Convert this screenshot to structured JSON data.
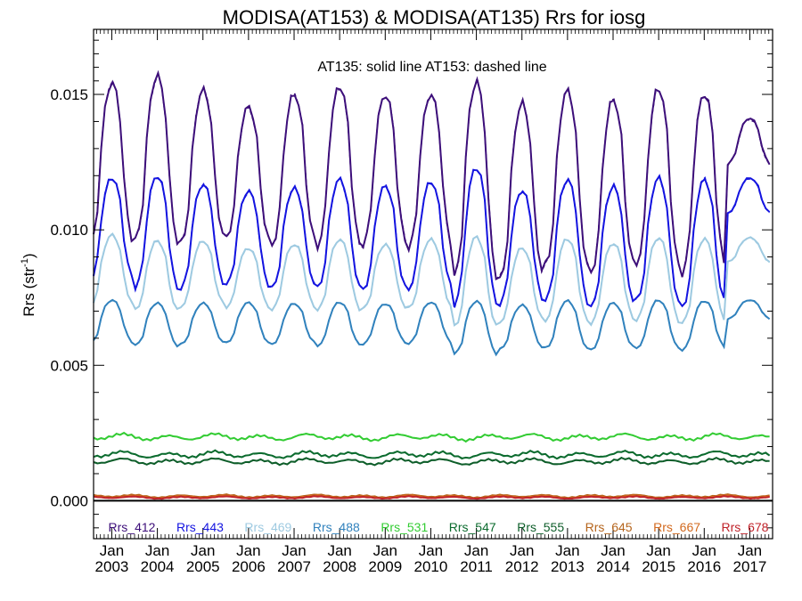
{
  "chart_data": {
    "type": "line",
    "title": "MODISA(AT153) & MODISA(AT135)  Rrs for iosg",
    "ylabel": "Rrs (str",
    "ylabel_sup": "-1",
    "ylabel_close": ")",
    "annotation": "AT135: solid line   AT153: dashed line",
    "xlim": [
      2002.6,
      2017.5
    ],
    "ylim": [
      -0.0014,
      0.0174
    ],
    "y_ticks": [
      0.0,
      0.005,
      0.01,
      0.015
    ],
    "y_tick_labels": [
      "0.000",
      "0.005",
      "0.010",
      "0.015"
    ],
    "x_ticks": [
      {
        "x": 2003,
        "month": "Jan",
        "year": "2003"
      },
      {
        "x": 2004,
        "month": "Jan",
        "year": "2004"
      },
      {
        "x": 2005,
        "month": "Jan",
        "year": "2005"
      },
      {
        "x": 2006,
        "month": "Jan",
        "year": "2006"
      },
      {
        "x": 2007,
        "month": "Jan",
        "year": "2007"
      },
      {
        "x": 2008,
        "month": "Jan",
        "year": "2008"
      },
      {
        "x": 2009,
        "month": "Jan",
        "year": "2009"
      },
      {
        "x": 2010,
        "month": "Jan",
        "year": "2010"
      },
      {
        "x": 2011,
        "month": "Jan",
        "year": "2011"
      },
      {
        "x": 2012,
        "month": "Jan",
        "year": "2012"
      },
      {
        "x": 2013,
        "month": "Jan",
        "year": "2013"
      },
      {
        "x": 2014,
        "month": "Jan",
        "year": "2014"
      },
      {
        "x": 2015,
        "month": "Jan",
        "year": "2015"
      },
      {
        "x": 2016,
        "month": "Jan",
        "year": "2016"
      },
      {
        "x": 2017,
        "month": "Jan",
        "year": "2017"
      }
    ],
    "zero_line": 0.0,
    "series": [
      {
        "name": "Rrs_412",
        "color": "#3d0f7a",
        "peak_phase": 0.0,
        "peaks": [
          0.0154,
          0.0157,
          0.0152,
          0.0145,
          0.0151,
          0.0152,
          0.0151,
          0.0149,
          0.0156,
          0.0146,
          0.0152,
          0.0148,
          0.0152,
          0.0151,
          0.0141
        ],
        "troughs": [
          0.0094,
          0.0095,
          0.0096,
          0.0096,
          0.0095,
          0.0093,
          0.0095,
          0.0093,
          0.0082,
          0.0082,
          0.0086,
          0.0085,
          0.0086,
          0.0085,
          0.0124
        ]
      },
      {
        "name": "Rrs_443",
        "color": "#1414e0",
        "peak_phase": 0.0,
        "peaks": [
          0.0119,
          0.012,
          0.0117,
          0.0114,
          0.0116,
          0.0118,
          0.0117,
          0.0117,
          0.0124,
          0.0114,
          0.0119,
          0.0116,
          0.0119,
          0.0119,
          0.0119
        ],
        "troughs": [
          0.0081,
          0.0078,
          0.0079,
          0.0079,
          0.0079,
          0.0078,
          0.0078,
          0.0078,
          0.0072,
          0.0073,
          0.0073,
          0.0072,
          0.0073,
          0.0072,
          0.0106
        ]
      },
      {
        "name": "Rrs_469",
        "color": "#9ecae1",
        "peak_phase": 0.0,
        "peaks": [
          0.0098,
          0.0096,
          0.0096,
          0.0093,
          0.0095,
          0.0096,
          0.0095,
          0.0096,
          0.0098,
          0.0093,
          0.0097,
          0.0095,
          0.0097,
          0.0097,
          0.0097
        ],
        "troughs": [
          0.0072,
          0.007,
          0.0072,
          0.0071,
          0.0071,
          0.007,
          0.0071,
          0.0071,
          0.0064,
          0.0066,
          0.0066,
          0.0066,
          0.0066,
          0.0066,
          0.0088
        ]
      },
      {
        "name": "Rrs_488",
        "color": "#3182bd",
        "peak_phase": 0.0,
        "peaks": [
          0.0074,
          0.0073,
          0.0073,
          0.0073,
          0.0073,
          0.0073,
          0.0073,
          0.0073,
          0.0074,
          0.0072,
          0.0074,
          0.0073,
          0.0074,
          0.0074,
          0.0074
        ],
        "troughs": [
          0.0058,
          0.0057,
          0.0058,
          0.0058,
          0.0058,
          0.0057,
          0.0058,
          0.0058,
          0.0054,
          0.0056,
          0.0056,
          0.0056,
          0.0056,
          0.0056,
          0.0067
        ]
      },
      {
        "name": "Rrs_531",
        "color": "#33cc33",
        "base": 0.00235,
        "amp": 9e-05,
        "peak_phase": 0.25
      },
      {
        "name": "Rrs_547",
        "color": "#0b6b2e",
        "base": 0.0017,
        "amp": 9e-05,
        "peak_phase": 0.25
      },
      {
        "name": "Rrs_555",
        "color": "#0e5e2a",
        "base": 0.00145,
        "amp": 8e-05,
        "peak_phase": 0.25
      },
      {
        "name": "Rrs_645",
        "color": "#b5651d",
        "base": 0.00017,
        "amp": 4e-05,
        "peak_phase": 0.5
      },
      {
        "name": "Rrs_667",
        "color": "#d2691e",
        "base": 0.00014,
        "amp": 4e-05,
        "peak_phase": 0.5
      },
      {
        "name": "Rrs_678",
        "color": "#c0222a",
        "base": 0.00012,
        "amp": 3e-05,
        "peak_phase": 0.5
      }
    ]
  }
}
